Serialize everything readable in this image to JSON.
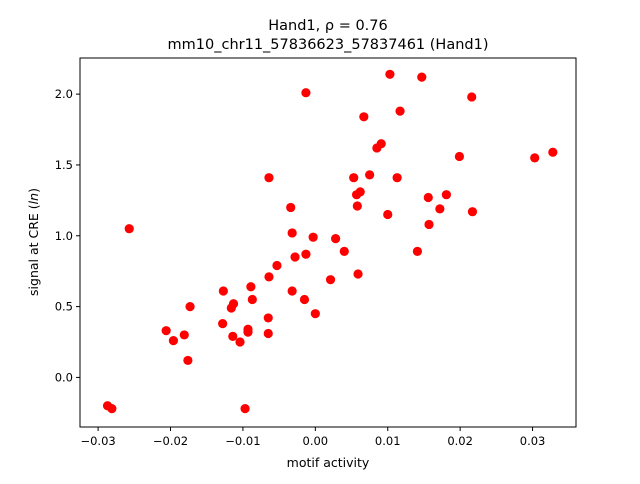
{
  "chart_data": {
    "type": "scatter",
    "title_line1": "Hand1, ρ = 0.76",
    "title_line2": "mm10_chr11_57836623_57837461 (Hand1)",
    "xlabel": "motif activity",
    "ylabel": "signal at CRE (ln)",
    "ylabel_prefix": "signal at CRE (",
    "ylabel_italic": "ln",
    "ylabel_suffix": ")",
    "xlim": [
      -0.0325,
      0.036
    ],
    "ylim": [
      -0.35,
      2.255
    ],
    "xticks": [
      -0.03,
      -0.02,
      -0.01,
      0.0,
      0.01,
      0.02,
      0.03
    ],
    "xtick_labels": [
      "−0.03",
      "−0.02",
      "−0.01",
      "0.00",
      "0.01",
      "0.02",
      "0.03"
    ],
    "yticks": [
      0.0,
      0.5,
      1.0,
      1.5,
      2.0
    ],
    "ytick_labels": [
      "0.0",
      "0.5",
      "1.0",
      "1.5",
      "2.0"
    ],
    "marker_color": "#ff0000",
    "grid": false,
    "points": [
      {
        "x": -0.0287,
        "y": -0.2
      },
      {
        "x": -0.0281,
        "y": -0.22
      },
      {
        "x": -0.0257,
        "y": 1.05
      },
      {
        "x": -0.0206,
        "y": 0.33
      },
      {
        "x": -0.0196,
        "y": 0.26
      },
      {
        "x": -0.0181,
        "y": 0.3
      },
      {
        "x": -0.0176,
        "y": 0.12
      },
      {
        "x": -0.0173,
        "y": 0.5
      },
      {
        "x": -0.0128,
        "y": 0.38
      },
      {
        "x": -0.0127,
        "y": 0.61
      },
      {
        "x": -0.0116,
        "y": 0.49
      },
      {
        "x": -0.0113,
        "y": 0.52
      },
      {
        "x": -0.0114,
        "y": 0.29
      },
      {
        "x": -0.0104,
        "y": 0.25
      },
      {
        "x": -0.0097,
        "y": -0.22
      },
      {
        "x": -0.0093,
        "y": 0.34
      },
      {
        "x": -0.0093,
        "y": 0.32
      },
      {
        "x": -0.0089,
        "y": 0.64
      },
      {
        "x": -0.0087,
        "y": 0.55
      },
      {
        "x": -0.0065,
        "y": 0.42
      },
      {
        "x": -0.0065,
        "y": 0.31
      },
      {
        "x": -0.0064,
        "y": 0.71
      },
      {
        "x": -0.0064,
        "y": 1.41
      },
      {
        "x": -0.0053,
        "y": 0.79
      },
      {
        "x": -0.0034,
        "y": 1.2
      },
      {
        "x": -0.0032,
        "y": 1.02
      },
      {
        "x": -0.0032,
        "y": 0.61
      },
      {
        "x": -0.0028,
        "y": 0.85
      },
      {
        "x": -0.0015,
        "y": 0.55
      },
      {
        "x": -0.0013,
        "y": 0.87
      },
      {
        "x": -0.0013,
        "y": 2.01
      },
      {
        "x": -0.0003,
        "y": 0.99
      },
      {
        "x": 0.0,
        "y": 0.45
      },
      {
        "x": 0.0021,
        "y": 0.69
      },
      {
        "x": 0.0028,
        "y": 0.98
      },
      {
        "x": 0.004,
        "y": 0.89
      },
      {
        "x": 0.0053,
        "y": 1.41
      },
      {
        "x": 0.0057,
        "y": 1.29
      },
      {
        "x": 0.0058,
        "y": 1.21
      },
      {
        "x": 0.0059,
        "y": 0.73
      },
      {
        "x": 0.0062,
        "y": 1.31
      },
      {
        "x": 0.0067,
        "y": 1.84
      },
      {
        "x": 0.0075,
        "y": 1.43
      },
      {
        "x": 0.0085,
        "y": 1.62
      },
      {
        "x": 0.0091,
        "y": 1.65
      },
      {
        "x": 0.01,
        "y": 1.15
      },
      {
        "x": 0.0103,
        "y": 2.14
      },
      {
        "x": 0.0113,
        "y": 1.41
      },
      {
        "x": 0.0117,
        "y": 1.88
      },
      {
        "x": 0.0141,
        "y": 0.89
      },
      {
        "x": 0.0147,
        "y": 2.12
      },
      {
        "x": 0.0156,
        "y": 1.27
      },
      {
        "x": 0.0157,
        "y": 1.08
      },
      {
        "x": 0.0172,
        "y": 1.19
      },
      {
        "x": 0.0181,
        "y": 1.29
      },
      {
        "x": 0.0199,
        "y": 1.56
      },
      {
        "x": 0.0216,
        "y": 1.98
      },
      {
        "x": 0.0217,
        "y": 1.17
      },
      {
        "x": 0.0303,
        "y": 1.55
      },
      {
        "x": 0.0328,
        "y": 1.59
      }
    ]
  }
}
